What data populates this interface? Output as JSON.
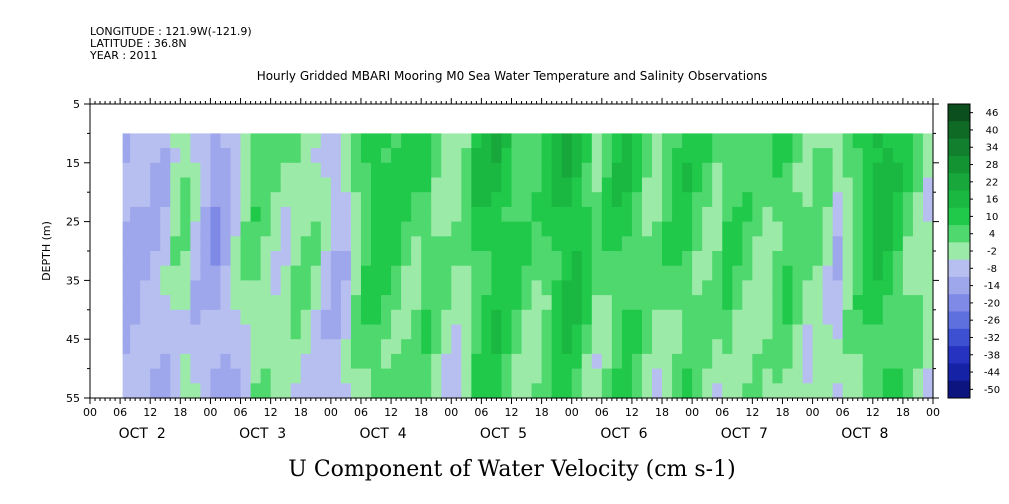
{
  "header": {
    "longitude": "LONGITUDE : 121.9W(-121.9)",
    "latitude": "LATITUDE : 36.8N",
    "year": "YEAR : 2011",
    "title": "Hourly Gridded MBARI Mooring M0 Sea Water Temperature and Salinity Observations"
  },
  "chart_data": {
    "type": "heatmap",
    "title": "U Component of Water Velocity (cm s-1)",
    "ylabel": "DEPTH (m)",
    "xlabel": "",
    "x_hours": [
      0,
      168
    ],
    "data_x_hours": [
      6.5,
      168
    ],
    "y_range": [
      5,
      55
    ],
    "data_y_range": [
      10,
      55
    ],
    "y_ticks": [
      "5",
      "15",
      "25",
      "35",
      "45",
      "55"
    ],
    "hour_tick_labels": [
      "00",
      "06",
      "12",
      "18",
      "00",
      "06",
      "12",
      "18",
      "00",
      "06",
      "12",
      "18",
      "00",
      "06",
      "12",
      "18",
      "00",
      "06",
      "12",
      "18",
      "00",
      "06",
      "12",
      "18",
      "00",
      "06",
      "12",
      "18",
      "00"
    ],
    "day_labels": [
      "OCT  2",
      "OCT  3",
      "OCT  4",
      "OCT  5",
      "OCT  6",
      "OCT  7",
      "OCT  8"
    ],
    "colorbar_levels": [
      "46",
      "40",
      "34",
      "28",
      "22",
      "16",
      "10",
      "4",
      "-2",
      "-8",
      "-14",
      "-20",
      "-26",
      "-32",
      "-38",
      "-44",
      "-50"
    ],
    "colorbar_colors": [
      "#0b4f1e",
      "#0f6a26",
      "#127f2e",
      "#149333",
      "#17a73a",
      "#1ab840",
      "#20c94a",
      "#4fd86e",
      "#9ceaa8",
      "#b7bff0",
      "#9ea6ec",
      "#7f8ae6",
      "#5e6fde",
      "#3e50d2",
      "#2533c0",
      "#1622a6",
      "#0c1480"
    ],
    "columns": [
      {
        "t": 6.5,
        "v": -10
      },
      {
        "t": 8,
        "v": -8
      },
      {
        "t": 10,
        "v": -6
      },
      {
        "t": 12,
        "v": -7
      },
      {
        "t": 14,
        "v": -5
      },
      {
        "t": 16,
        "v": 2
      },
      {
        "t": 18,
        "v": 4
      },
      {
        "t": 20,
        "v": -4
      },
      {
        "t": 22,
        "v": -8
      },
      {
        "t": 24,
        "v": -12
      },
      {
        "t": 26,
        "v": -9
      },
      {
        "t": 28,
        "v": -3
      },
      {
        "t": 30,
        "v": 3
      },
      {
        "t": 32,
        "v": 8
      },
      {
        "t": 34,
        "v": 6
      },
      {
        "t": 36,
        "v": 3
      },
      {
        "t": 38,
        "v": 2
      },
      {
        "t": 40,
        "v": 5
      },
      {
        "t": 42,
        "v": 4
      },
      {
        "t": 44,
        "v": 2
      },
      {
        "t": 46,
        "v": -3
      },
      {
        "t": 48,
        "v": -6
      },
      {
        "t": 50,
        "v": -4
      },
      {
        "t": 52,
        "v": 6
      },
      {
        "t": 54,
        "v": 12
      },
      {
        "t": 56,
        "v": 16
      },
      {
        "t": 58,
        "v": 14
      },
      {
        "t": 60,
        "v": 12
      },
      {
        "t": 62,
        "v": 10
      },
      {
        "t": 64,
        "v": 9
      },
      {
        "t": 66,
        "v": 12
      },
      {
        "t": 68,
        "v": 8
      },
      {
        "t": 70,
        "v": 5
      },
      {
        "t": 72,
        "v": 3
      },
      {
        "t": 74,
        "v": 6
      },
      {
        "t": 76,
        "v": 15
      },
      {
        "t": 78,
        "v": 18
      },
      {
        "t": 80,
        "v": 20
      },
      {
        "t": 82,
        "v": 16
      },
      {
        "t": 84,
        "v": 12
      },
      {
        "t": 86,
        "v": 9
      },
      {
        "t": 88,
        "v": 8
      },
      {
        "t": 90,
        "v": 12
      },
      {
        "t": 92,
        "v": 18
      },
      {
        "t": 94,
        "v": 22
      },
      {
        "t": 96,
        "v": 20
      },
      {
        "t": 98,
        "v": 14
      },
      {
        "t": 100,
        "v": 6
      },
      {
        "t": 102,
        "v": 10
      },
      {
        "t": 104,
        "v": 14
      },
      {
        "t": 106,
        "v": 16
      },
      {
        "t": 108,
        "v": 12
      },
      {
        "t": 110,
        "v": 8
      },
      {
        "t": 112,
        "v": 6
      },
      {
        "t": 114,
        "v": 9
      },
      {
        "t": 116,
        "v": 12
      },
      {
        "t": 118,
        "v": 14
      },
      {
        "t": 120,
        "v": 10
      },
      {
        "t": 122,
        "v": 8
      },
      {
        "t": 124,
        "v": 6
      },
      {
        "t": 126,
        "v": 12
      },
      {
        "t": 128,
        "v": 10
      },
      {
        "t": 130,
        "v": 8
      },
      {
        "t": 132,
        "v": 6
      },
      {
        "t": 134,
        "v": 4
      },
      {
        "t": 136,
        "v": 10
      },
      {
        "t": 138,
        "v": 12
      },
      {
        "t": 140,
        "v": 8
      },
      {
        "t": 142,
        "v": 4
      },
      {
        "t": 144,
        "v": 6
      },
      {
        "t": 146,
        "v": 2
      },
      {
        "t": 148,
        "v": -4
      },
      {
        "t": 150,
        "v": 4
      },
      {
        "t": 152,
        "v": 10
      },
      {
        "t": 154,
        "v": 16
      },
      {
        "t": 156,
        "v": 20
      },
      {
        "t": 158,
        "v": 18
      },
      {
        "t": 160,
        "v": 14
      },
      {
        "t": 162,
        "v": 10
      },
      {
        "t": 164,
        "v": 6
      },
      {
        "t": 166,
        "v": 2
      }
    ]
  }
}
